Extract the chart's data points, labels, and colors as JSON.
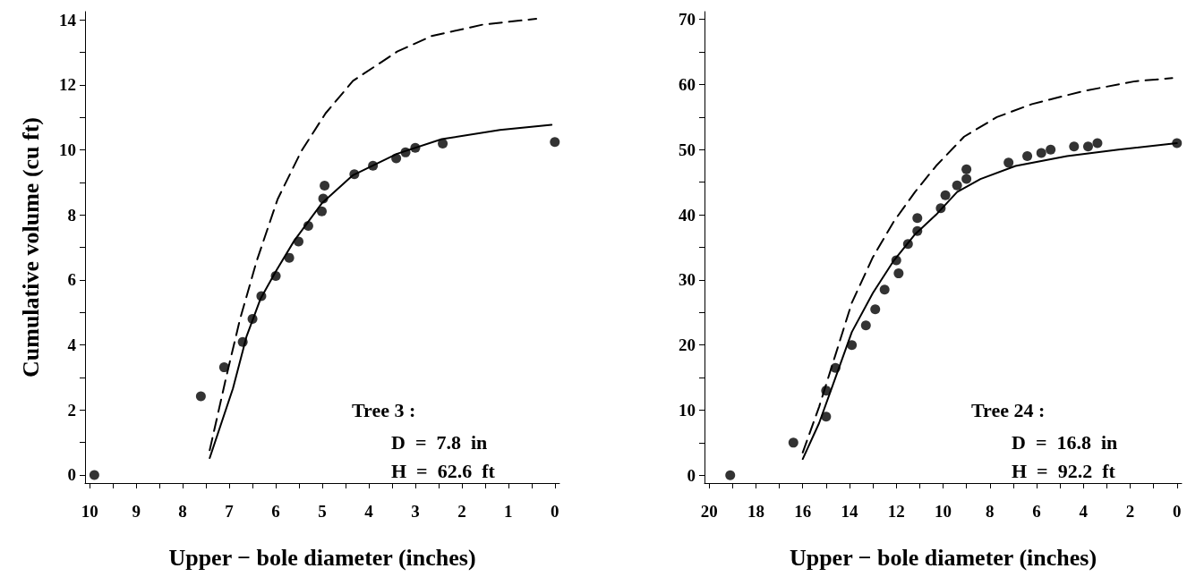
{
  "chart_data": [
    {
      "type": "scatter",
      "ylabel": "Cumulative volume (cu ft)",
      "xlabel": "Upper − bole diameter (inches)",
      "annotations": [
        "Tree 3 :",
        "D  =  7.8  in",
        "H  =  62.6  ft"
      ],
      "xlim": [
        10.1,
        -0.1
      ],
      "ylim": [
        -0.25,
        14.25
      ],
      "xticks": [
        0,
        {
          "value": 0.5,
          "label": null
        },
        1,
        {
          "value": 1.5,
          "label": null
        },
        2,
        {
          "value": 2.5,
          "label": null
        },
        3,
        {
          "value": 3.5,
          "label": null
        },
        4,
        {
          "value": 4.5,
          "label": null
        },
        5,
        {
          "value": 5.5,
          "label": null
        },
        6,
        {
          "value": 6.5,
          "label": null
        },
        7,
        {
          "value": 7.5,
          "label": null
        },
        8,
        {
          "value": 8.5,
          "label": null
        },
        9,
        {
          "value": 9.5,
          "label": null
        },
        10
      ],
      "yticks": [
        0,
        {
          "value": 1,
          "label": null
        },
        2,
        {
          "value": 3,
          "label": null
        },
        4,
        {
          "value": 5,
          "label": null
        },
        6,
        {
          "value": 7,
          "label": null
        },
        8,
        {
          "value": 9,
          "label": null
        },
        10,
        {
          "value": 11,
          "label": null
        },
        12,
        {
          "value": 13,
          "label": null
        },
        14
      ],
      "grid": false,
      "series": [
        {
          "marker": "circle",
          "color": "#000000",
          "x": [
            9.9,
            7.61,
            7.11,
            6.71,
            6.5,
            6.31,
            6.0,
            5.71,
            5.51,
            5.3,
            5.01,
            4.98,
            4.95,
            4.31,
            3.91,
            3.41,
            3.21,
            3.0,
            2.41,
            0
          ],
          "values": [
            0,
            2.42,
            3.31,
            4.09,
            4.8,
            5.5,
            6.12,
            6.68,
            7.18,
            7.66,
            8.11,
            8.5,
            8.9,
            9.25,
            9.51,
            9.74,
            9.92,
            10.06,
            10.19,
            10.24
          ]
        },
        {
          "type": "line",
          "marker": "none",
          "line_style": "solid",
          "color": "#000000",
          "x": [
            7.42,
            6.92,
            6.63,
            6.33,
            6.0,
            5.6,
            5.0,
            4.34,
            3.39,
            2.43,
            1.18,
            0.07
          ],
          "values": [
            0.52,
            2.66,
            4.25,
            5.41,
            6.26,
            7.21,
            8.37,
            9.22,
            9.88,
            10.33,
            10.61,
            10.77
          ]
        },
        {
          "type": "line",
          "marker": "none",
          "line_style": "dashed",
          "color": "#000000",
          "x": [
            7.42,
            7.07,
            6.77,
            6.41,
            5.96,
            5.45,
            4.93,
            4.34,
            3.39,
            2.65,
            1.55,
            0.4
          ],
          "values": [
            0.76,
            2.98,
            4.78,
            6.58,
            8.48,
            9.96,
            11.12,
            12.12,
            13.02,
            13.5,
            13.85,
            14.03
          ]
        }
      ]
    },
    {
      "type": "scatter",
      "xlabel": "Upper − bole diameter (inches)",
      "annotations": [
        "Tree 24 :",
        "D  =  16.8  in",
        "H  =  92.2  ft"
      ],
      "xlim": [
        20.2,
        -0.2
      ],
      "ylim": [
        -1.2,
        71.2
      ],
      "xticks": [
        0,
        {
          "value": 1,
          "label": null
        },
        2,
        {
          "value": 3,
          "label": null
        },
        4,
        {
          "value": 5,
          "label": null
        },
        6,
        {
          "value": 7,
          "label": null
        },
        8,
        {
          "value": 9,
          "label": null
        },
        10,
        {
          "value": 11,
          "label": null
        },
        12,
        {
          "value": 13,
          "label": null
        },
        14,
        {
          "value": 15,
          "label": null
        },
        16,
        {
          "value": 17,
          "label": null
        },
        18,
        {
          "value": 19,
          "label": null
        },
        20
      ],
      "yticks": [
        0,
        {
          "value": 5,
          "label": null
        },
        10,
        {
          "value": 15,
          "label": null
        },
        20,
        {
          "value": 25,
          "label": null
        },
        30,
        {
          "value": 35,
          "label": null
        },
        40,
        {
          "value": 45,
          "label": null
        },
        50,
        {
          "value": 55,
          "label": null
        },
        60,
        {
          "value": 65,
          "label": null
        },
        70
      ],
      "grid": false,
      "series": [
        {
          "marker": "circle",
          "color": "#000000",
          "x": [
            19.1,
            16.4,
            15.0,
            15.0,
            14.6,
            13.9,
            13.3,
            12.9,
            12.5,
            12.0,
            11.9,
            11.5,
            11.1,
            11.1,
            10.1,
            9.9,
            9.4,
            9.0,
            9.0,
            7.2,
            6.4,
            5.8,
            5.4,
            4.4,
            3.8,
            3.4,
            0
          ],
          "values": [
            0,
            5,
            9,
            13,
            16.5,
            20,
            23,
            25.5,
            28.5,
            33,
            31,
            35.5,
            37.5,
            39.5,
            41,
            43,
            44.5,
            47,
            45.5,
            48,
            49,
            49.5,
            50,
            50.5,
            50.5,
            51,
            51
          ]
        },
        {
          "type": "line",
          "marker": "none",
          "line_style": "solid",
          "color": "#000000",
          "x": [
            16.0,
            15.3,
            14.6,
            13.9,
            13.0,
            12.1,
            11.2,
            10.3,
            9.4,
            8.4,
            6.9,
            4.7,
            2.5,
            0
          ],
          "values": [
            2.5,
            8,
            15,
            22,
            28,
            33,
            37,
            40,
            43.5,
            45.5,
            47.5,
            49,
            50,
            51
          ]
        },
        {
          "type": "line",
          "marker": "none",
          "line_style": "dashed",
          "color": "#000000",
          "x": [
            16.0,
            15.3,
            14.6,
            13.9,
            13.0,
            12.1,
            11.2,
            10.3,
            9.1,
            7.7,
            6.2,
            4.0,
            1.8,
            0.2
          ],
          "values": [
            3.5,
            10.5,
            18.5,
            26.5,
            33.5,
            39,
            43.5,
            47.5,
            52,
            55,
            57,
            59,
            60.5,
            61
          ]
        }
      ]
    }
  ]
}
